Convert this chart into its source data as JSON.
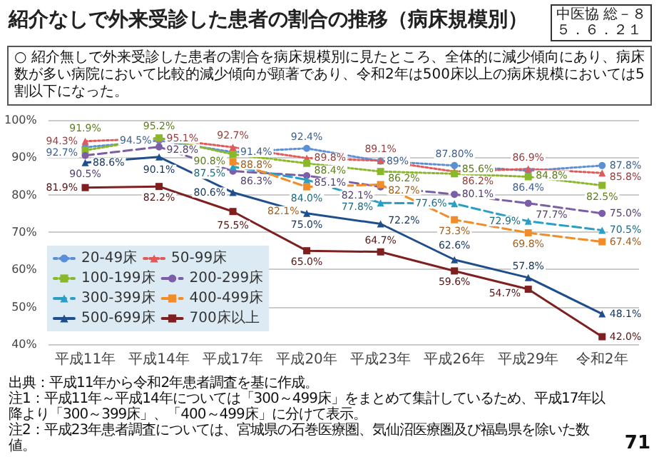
{
  "chart_data": {
    "type": "line",
    "title": "紹介なしで外来受診した患者の割合の推移（病床規模別）",
    "subtitle": "○ 紹介無しで外来受診した患者の割合を病床規模別に見たところ、全体的に減少傾向にあり、病床数が多い病院において比較的減少傾向が顕著であり、令和2年は500床以上の病床規模においては5割以下になった。",
    "categories": [
      "平成11年",
      "平成14年",
      "平成17年",
      "平成20年",
      "平成23年",
      "平成26年",
      "平成29年",
      "令和2年"
    ],
    "series": [
      {
        "name": "20-49床",
        "color": "#5b8fd6",
        "marker": "circle",
        "line_style": "dotted",
        "values": [
          92.7,
          94.5,
          91.4,
          92.4,
          89,
          87.8,
          86.4,
          87.8
        ],
        "value_labels": [
          "92.7%",
          "94.5%",
          "91.4%",
          "92.4%",
          "89%",
          "87.80%",
          "86.4%",
          "87.8%"
        ]
      },
      {
        "name": "50-99床",
        "color": "#e05a5a",
        "marker": "triangle",
        "line_style": "dotted",
        "values": [
          94.3,
          95.1,
          92.7,
          89.8,
          89.1,
          86.2,
          86.9,
          85.8
        ],
        "value_labels": [
          "94.3%",
          "95.1%",
          "92.7%",
          "89.8%",
          "89.1%",
          "86.2%",
          "86.9%",
          "85.8%"
        ]
      },
      {
        "name": "100-199床",
        "color": "#8ab82a",
        "marker": "square",
        "line_style": "dotted",
        "values": [
          91.9,
          95.2,
          90.8,
          88.4,
          86.2,
          85.6,
          84.8,
          82.5
        ],
        "value_labels": [
          "91.9%",
          "95.2%",
          "90.8%",
          "88.4%",
          "86.2%",
          "85.6%",
          "84.8%",
          "82.5%"
        ]
      },
      {
        "name": "200-299床",
        "color": "#7b5ea7",
        "marker": "circle",
        "line_style": "dashed",
        "values": [
          90.5,
          92.8,
          86.3,
          85.1,
          82.1,
          80.1,
          77.7,
          75.0
        ],
        "value_labels": [
          "90.5%",
          "92.8%",
          "86.3%",
          "85.1%",
          "82.1%",
          "80.1%",
          "77.7%",
          "75.0%"
        ]
      },
      {
        "name": "300-399床",
        "color": "#2a9fc4",
        "marker": "triangle",
        "line_style": "dashed",
        "values": [
          null,
          null,
          87.5,
          84.0,
          77.8,
          77.6,
          72.9,
          70.5
        ],
        "value_labels": [
          null,
          null,
          "87.5%",
          "84.0%",
          "77.8%",
          "77.6%",
          "72.9%",
          "70.5%"
        ]
      },
      {
        "name": "400-499床",
        "color": "#f08c2a",
        "marker": "square",
        "line_style": "dashed",
        "values": [
          null,
          null,
          88.8,
          82.1,
          82.7,
          73.3,
          69.8,
          67.4
        ],
        "value_labels": [
          null,
          null,
          "88.8%",
          "82.1%",
          "82.7%",
          "73.3%",
          "69.8%",
          "67.4%"
        ]
      },
      {
        "name": "500-699床",
        "color": "#1f4e8c",
        "marker": "triangle",
        "line_style": "solid",
        "values": [
          88.6,
          90.1,
          80.6,
          75.0,
          72.2,
          62.6,
          57.8,
          48.1
        ],
        "value_labels": [
          "88.6%",
          "90.1%",
          "80.6%",
          "75.0%",
          "72.2%",
          "62.6%",
          "57.8%",
          "48.1%"
        ]
      },
      {
        "name": "700床以上",
        "color": "#7f1f1f",
        "marker": "square",
        "line_style": "solid",
        "values": [
          81.9,
          82.2,
          75.5,
          65.0,
          64.7,
          59.6,
          54.7,
          42.0
        ],
        "value_labels": [
          "81.9%",
          "82.2%",
          "75.5%",
          "65.0%",
          "64.7%",
          "59.6%",
          "54.7%",
          "42.0%"
        ]
      }
    ],
    "ylim": [
      40,
      100
    ],
    "yticks": [
      {
        "value": 40,
        "label": "40%"
      },
      {
        "value": 50,
        "label": "50%"
      },
      {
        "value": 60,
        "label": "60%"
      },
      {
        "value": 70,
        "label": "70%"
      },
      {
        "value": 80,
        "label": "80%"
      },
      {
        "value": 90,
        "label": "90%"
      },
      {
        "value": 100,
        "label": "100%"
      }
    ],
    "grid": "y",
    "legend": "bottom left",
    "annotations": [
      "中医協 総－８",
      "５．６．２１",
      "出典：平成11年から令和2年患者調査を基に作成。",
      "注1：平成11年～平成14年については「300～499床」をまとめて集計しているため、平成17年以降より「300～399床」、「400～499床」に分けて表示。",
      "注2：平成23年患者調査については、宮城県の石巻医療圏、気仙沼医療圏及び福島県を除いた数値。",
      "71"
    ]
  }
}
